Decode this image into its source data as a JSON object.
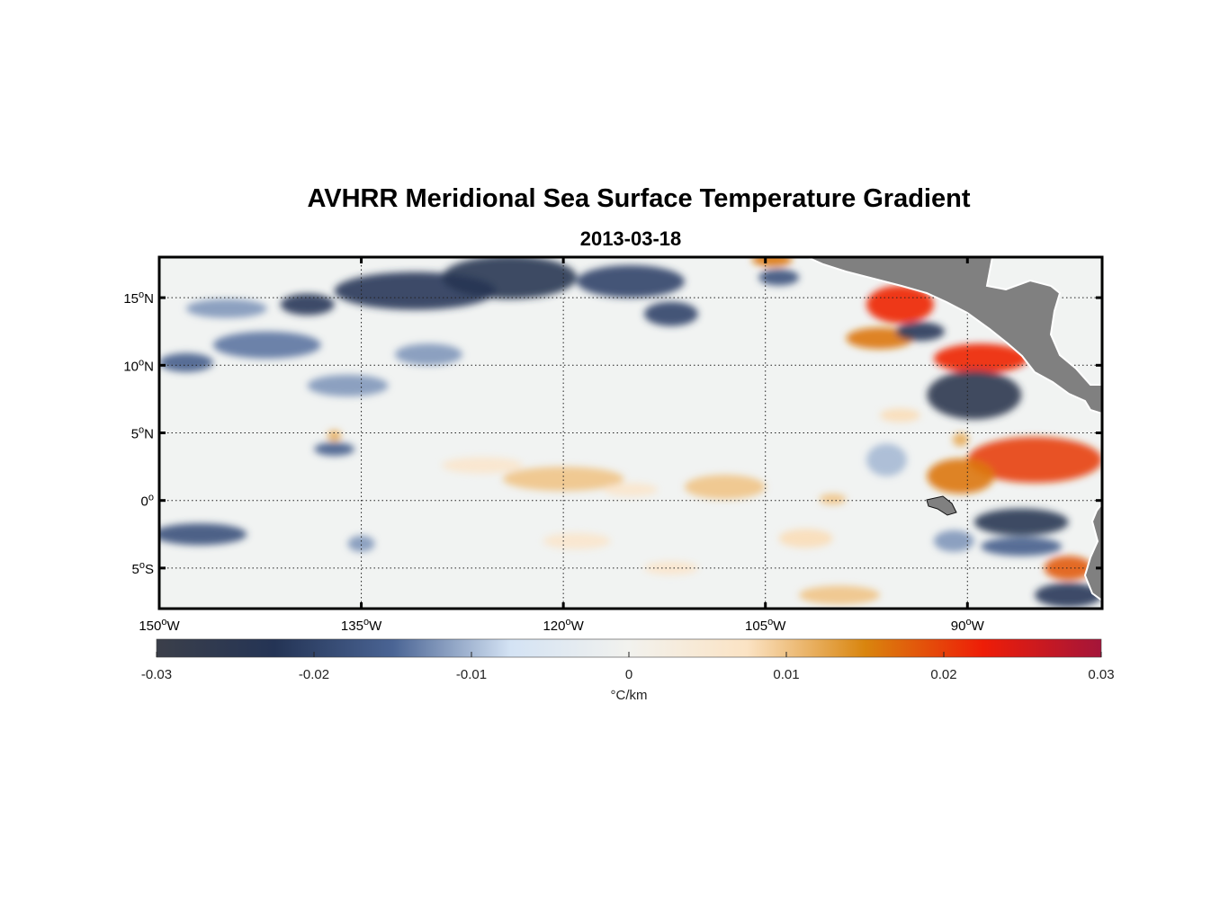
{
  "title": "AVHRR Meridional Sea Surface Temperature Gradient",
  "subtitle": "2013-03-18",
  "map": {
    "lon_range": [
      -150,
      -80
    ],
    "lat_range": [
      -8,
      18
    ],
    "lat_ticks": [
      {
        "value": 15,
        "num": "15",
        "hemi": "N"
      },
      {
        "value": 10,
        "num": "10",
        "hemi": "N"
      },
      {
        "value": 5,
        "num": "5",
        "hemi": "N"
      },
      {
        "value": 0,
        "num": "0",
        "hemi": ""
      },
      {
        "value": -5,
        "num": "5",
        "hemi": "S"
      }
    ],
    "lon_ticks": [
      {
        "value": -150,
        "num": "150",
        "hemi": "W"
      },
      {
        "value": -135,
        "num": "135",
        "hemi": "W"
      },
      {
        "value": -120,
        "num": "120",
        "hemi": "W"
      },
      {
        "value": -105,
        "num": "105",
        "hemi": "W"
      },
      {
        "value": -90,
        "num": "90",
        "hemi": "W"
      }
    ],
    "degree_symbol": "o",
    "land_color": "#808080"
  },
  "colorbar": {
    "range": [
      -0.03,
      0.03
    ],
    "ticks": [
      "-0.03",
      "-0.02",
      "-0.01",
      "0",
      "0.01",
      "0.02",
      "0.03"
    ],
    "tick_values": [
      -0.03,
      -0.02,
      -0.01,
      0,
      0.01,
      0.02,
      0.03
    ],
    "units": "°C/km",
    "color_stops": [
      "#3b3f4a",
      "#243455",
      "#4a6494",
      "#d4e3f4",
      "#f2f2ee",
      "#fbe3c4",
      "#d9850e",
      "#ee1d07",
      "#a4153a"
    ]
  },
  "features": [
    {
      "lon": -131,
      "lat": 15.5,
      "value": -0.022,
      "rlon": 6,
      "rlat": 1.4
    },
    {
      "lon": -124,
      "lat": 16.5,
      "value": -0.024,
      "rlon": 5,
      "rlat": 1.6
    },
    {
      "lon": -115,
      "lat": 16.2,
      "value": -0.02,
      "rlon": 4,
      "rlat": 1.2
    },
    {
      "lon": -139,
      "lat": 14.5,
      "value": -0.022,
      "rlon": 2,
      "rlat": 0.8
    },
    {
      "lon": -112,
      "lat": 13.8,
      "value": -0.02,
      "rlon": 2,
      "rlat": 0.9
    },
    {
      "lon": -145,
      "lat": 14.2,
      "value": -0.012,
      "rlon": 3,
      "rlat": 0.7
    },
    {
      "lon": -142,
      "lat": 11.5,
      "value": -0.014,
      "rlon": 4,
      "rlat": 1
    },
    {
      "lon": -148,
      "lat": 10.2,
      "value": -0.016,
      "rlon": 2,
      "rlat": 0.7
    },
    {
      "lon": -136,
      "lat": 8.5,
      "value": -0.012,
      "rlon": 3,
      "rlat": 0.8
    },
    {
      "lon": -130,
      "lat": 10.8,
      "value": -0.012,
      "rlon": 2.5,
      "rlat": 0.8
    },
    {
      "lon": -147,
      "lat": -2.5,
      "value": -0.018,
      "rlon": 3.5,
      "rlat": 0.8
    },
    {
      "lon": -137,
      "lat": 3.8,
      "value": -0.016,
      "rlon": 1.5,
      "rlat": 0.5
    },
    {
      "lon": -135,
      "lat": -3.2,
      "value": -0.012,
      "rlon": 1,
      "rlat": 0.6
    },
    {
      "lon": -126,
      "lat": 2.6,
      "value": 0.006,
      "rlon": 3,
      "rlat": 0.6
    },
    {
      "lon": -120,
      "lat": 1.6,
      "value": 0.01,
      "rlon": 4.5,
      "rlat": 0.9
    },
    {
      "lon": -108,
      "lat": 1,
      "value": 0.01,
      "rlon": 3,
      "rlat": 0.9
    },
    {
      "lon": -115,
      "lat": 0.8,
      "value": 0.006,
      "rlon": 2,
      "rlat": 0.5
    },
    {
      "lon": -137,
      "lat": 4.8,
      "value": 0.012,
      "rlon": 0.5,
      "rlat": 0.4
    },
    {
      "lon": -95,
      "lat": 14.5,
      "value": 0.022,
      "rlon": 2.5,
      "rlat": 1.4
    },
    {
      "lon": -96.5,
      "lat": 12,
      "value": 0.016,
      "rlon": 2.5,
      "rlat": 0.8
    },
    {
      "lon": -93.5,
      "lat": 12.5,
      "value": -0.022,
      "rlon": 1.8,
      "rlat": 0.7
    },
    {
      "lon": -89,
      "lat": 10.5,
      "value": 0.022,
      "rlon": 3.5,
      "rlat": 1.1
    },
    {
      "lon": -89.5,
      "lat": 7.8,
      "value": -0.026,
      "rlon": 3.5,
      "rlat": 1.8
    },
    {
      "lon": -85,
      "lat": 3,
      "value": 0.02,
      "rlon": 5,
      "rlat": 1.7
    },
    {
      "lon": -90.5,
      "lat": 1.8,
      "value": 0.016,
      "rlon": 2.5,
      "rlat": 1.3
    },
    {
      "lon": -90.5,
      "lat": 4.5,
      "value": 0.012,
      "rlon": 0.6,
      "rlat": 0.5
    },
    {
      "lon": -95,
      "lat": 6.3,
      "value": 0.008,
      "rlon": 1.5,
      "rlat": 0.5
    },
    {
      "lon": -86,
      "lat": -1.6,
      "value": -0.024,
      "rlon": 3.5,
      "rlat": 1
    },
    {
      "lon": -86,
      "lat": -3.4,
      "value": -0.016,
      "rlon": 3,
      "rlat": 0.7
    },
    {
      "lon": -82.5,
      "lat": -5,
      "value": 0.018,
      "rlon": 1.8,
      "rlat": 0.9
    },
    {
      "lon": -82.5,
      "lat": -7,
      "value": -0.022,
      "rlon": 2.5,
      "rlat": 0.9
    },
    {
      "lon": -99.5,
      "lat": -7,
      "value": 0.01,
      "rlon": 3,
      "rlat": 0.7
    },
    {
      "lon": -91,
      "lat": -3,
      "value": -0.012,
      "rlon": 1.5,
      "rlat": 0.8
    },
    {
      "lon": -100,
      "lat": 0.1,
      "value": 0.01,
      "rlon": 1,
      "rlat": 0.4
    },
    {
      "lon": -102,
      "lat": -2.8,
      "value": 0.008,
      "rlon": 2,
      "rlat": 0.7
    },
    {
      "lon": -104.5,
      "lat": 17.8,
      "value": 0.016,
      "rlon": 1.5,
      "rlat": 0.5
    },
    {
      "lon": -104,
      "lat": 16.5,
      "value": -0.018,
      "rlon": 1.5,
      "rlat": 0.6
    },
    {
      "lon": -119,
      "lat": -3,
      "value": 0.006,
      "rlon": 2.5,
      "rlat": 0.6
    },
    {
      "lon": -112,
      "lat": -5,
      "value": 0.006,
      "rlon": 2,
      "rlat": 0.5
    },
    {
      "lon": -96,
      "lat": 3,
      "value": -0.01,
      "rlon": 1.5,
      "rlat": 1.2
    }
  ]
}
